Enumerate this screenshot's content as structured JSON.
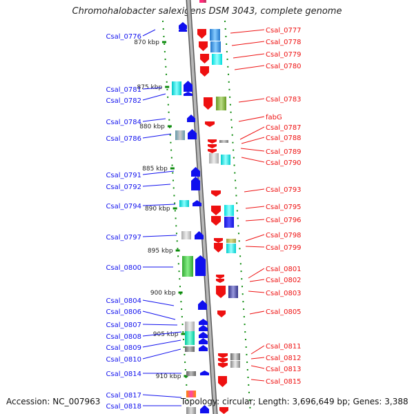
{
  "title": "Chromohalobacter salexigens DSM 3043, complete genome",
  "footer": {
    "accession": "Accession: NC_007963",
    "topology": "Topology: circular; Length: 3,696,649 bp; Genes: 3,388"
  },
  "colors": {
    "backbone": "#8c8c8c",
    "scale_tick": "#0a8a0a",
    "minus_strand": "#1010ee",
    "plus_strand": "#ee1010"
  },
  "scale_labels": [
    "870 kbp",
    "875 kbp",
    "880 kbp",
    "885 kbp",
    "890 kbp",
    "895 kbp",
    "900 kbp",
    "905 kbp",
    "910 kbp"
  ],
  "minus_strand_genes": [
    "Csal_0776",
    "Csal_0781",
    "Csal_0782",
    "Csal_0784",
    "Csal_0786",
    "Csal_0791",
    "Csal_0792",
    "Csal_0794",
    "Csal_0797",
    "Csal_0800",
    "Csal_0804",
    "Csal_0806",
    "Csal_0807",
    "Csal_0808",
    "Csal_0809",
    "Csal_0810",
    "Csal_0814",
    "Csal_0817",
    "Csal_0818"
  ],
  "plus_strand_genes": [
    "Csal_0777",
    "Csal_0778",
    "Csal_0779",
    "Csal_0780",
    "Csal_0783",
    "fabG",
    "Csal_0787",
    "Csal_0788",
    "Csal_0789",
    "Csal_0790",
    "Csal_0793",
    "Csal_0795",
    "Csal_0796",
    "Csal_0798",
    "Csal_0799",
    "Csal_0801",
    "Csal_0802",
    "Csal_0803",
    "Csal_0805",
    "Csal_0811",
    "Csal_0812",
    "Csal_0813",
    "Csal_0815"
  ]
}
